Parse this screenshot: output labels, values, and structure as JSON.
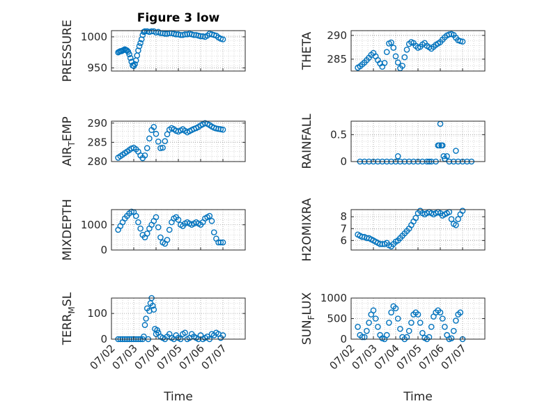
{
  "figure": {
    "title": "Figure 3 low",
    "xlabel": "Time"
  },
  "colors": {
    "marker": "#0072BD",
    "axis": "#262626",
    "grid": "#b8b8b8"
  },
  "chart_data": [
    {
      "id": "pressure",
      "type": "scatter",
      "ylabel": "PRESSURE",
      "ylim": [
        945,
        1010
      ],
      "yticks": [
        950,
        1000
      ],
      "xlim": [
        0,
        6
      ],
      "x_ticks_shown": false,
      "x": [
        0.3,
        0.35,
        0.4,
        0.45,
        0.5,
        0.55,
        0.6,
        0.65,
        0.7,
        0.75,
        0.8,
        0.85,
        0.9,
        0.95,
        1.0,
        1.05,
        1.1,
        1.15,
        1.2,
        1.25,
        1.3,
        1.35,
        1.4,
        1.45,
        1.5,
        1.6,
        1.7,
        1.8,
        1.9,
        2.0,
        2.1,
        2.2,
        2.3,
        2.4,
        2.5,
        2.6,
        2.7,
        2.8,
        2.9,
        3.0,
        3.1,
        3.2,
        3.3,
        3.4,
        3.5,
        3.6,
        3.7,
        3.8,
        3.9,
        4.0,
        4.1,
        4.2,
        4.3,
        4.4,
        4.5,
        4.6,
        4.7,
        4.8,
        4.9,
        5.0
      ],
      "y": [
        975,
        976,
        977,
        977,
        978,
        979,
        980,
        979,
        978,
        976,
        972,
        966,
        960,
        954,
        953,
        956,
        962,
        970,
        978,
        985,
        990,
        996,
        1003,
        1008,
        1009,
        1009,
        1008,
        1009,
        1009,
        1007,
        1008,
        1006,
        1006,
        1005,
        1005,
        1006,
        1006,
        1005,
        1004,
        1004,
        1003,
        1003,
        1004,
        1004,
        1005,
        1004,
        1003,
        1003,
        1002,
        1001,
        1001,
        1000,
        1002,
        1005,
        1004,
        1003,
        1002,
        999,
        997,
        996
      ]
    },
    {
      "id": "theta",
      "type": "scatter",
      "ylabel": "THETA",
      "ylim": [
        282.5,
        291
      ],
      "yticks": [
        285,
        290
      ],
      "xlim": [
        0,
        6
      ],
      "x_ticks_shown": false,
      "x": [
        0.3,
        0.4,
        0.5,
        0.6,
        0.7,
        0.8,
        0.9,
        1.0,
        1.1,
        1.2,
        1.3,
        1.4,
        1.5,
        1.6,
        1.7,
        1.8,
        1.9,
        2.0,
        2.1,
        2.2,
        2.3,
        2.4,
        2.5,
        2.6,
        2.7,
        2.8,
        2.9,
        3.0,
        3.1,
        3.2,
        3.3,
        3.4,
        3.5,
        3.6,
        3.7,
        3.8,
        3.9,
        4.0,
        4.1,
        4.2,
        4.3,
        4.4,
        4.5,
        4.6,
        4.7,
        4.8,
        4.9,
        5.0
      ],
      "y": [
        283.2,
        283.5,
        283.9,
        284.3,
        284.8,
        285.3,
        285.9,
        286.3,
        285.6,
        284.8,
        284.1,
        283.4,
        284.2,
        286.5,
        288.3,
        288.5,
        287.4,
        285.6,
        284.3,
        283.1,
        283.6,
        285.4,
        287.0,
        288.2,
        288.6,
        288.4,
        287.8,
        287.4,
        287.6,
        288.1,
        288.4,
        287.8,
        287.5,
        287.2,
        287.6,
        288.0,
        288.3,
        288.6,
        289.1,
        289.6,
        290.0,
        290.2,
        290.3,
        290.1,
        289.5,
        289.0,
        288.8,
        288.7
      ]
    },
    {
      "id": "airtemp",
      "type": "scatter",
      "ylabel": "AIR_TEMP",
      "ylim": [
        280,
        290.5
      ],
      "yticks": [
        280,
        285,
        290
      ],
      "xlim": [
        0,
        6
      ],
      "x_ticks_shown": false,
      "x": [
        0.3,
        0.4,
        0.5,
        0.6,
        0.7,
        0.8,
        0.9,
        1.0,
        1.1,
        1.2,
        1.3,
        1.4,
        1.5,
        1.6,
        1.7,
        1.8,
        1.9,
        2.0,
        2.1,
        2.2,
        2.3,
        2.4,
        2.5,
        2.6,
        2.7,
        2.8,
        2.9,
        3.0,
        3.1,
        3.2,
        3.3,
        3.4,
        3.5,
        3.6,
        3.7,
        3.8,
        3.9,
        4.0,
        4.1,
        4.2,
        4.3,
        4.4,
        4.5,
        4.6,
        4.7,
        4.8,
        4.9,
        5.0
      ],
      "y": [
        281.0,
        281.4,
        281.8,
        282.2,
        282.6,
        283.0,
        283.4,
        283.6,
        283.2,
        282.6,
        281.6,
        280.9,
        281.6,
        283.5,
        286.0,
        288.2,
        289.0,
        287.2,
        285.2,
        283.5,
        283.6,
        285.3,
        287.1,
        288.3,
        288.7,
        288.4,
        288.0,
        287.8,
        288.1,
        288.4,
        288.0,
        287.6,
        287.9,
        288.2,
        288.5,
        288.7,
        289.0,
        289.4,
        289.7,
        290.0,
        289.8,
        289.5,
        289.1,
        288.8,
        288.6,
        288.5,
        288.4,
        288.3
      ]
    },
    {
      "id": "rainfall",
      "type": "scatter",
      "ylabel": "RAINFALL",
      "ylim": [
        0,
        0.75
      ],
      "yticks": [
        0,
        0.5
      ],
      "xlim": [
        0,
        6
      ],
      "x_ticks_shown": false,
      "x": [
        0.4,
        0.6,
        0.8,
        1.0,
        1.2,
        1.4,
        1.6,
        1.8,
        2.0,
        2.1,
        2.2,
        2.4,
        2.6,
        2.8,
        3.0,
        3.2,
        3.4,
        3.5,
        3.6,
        3.8,
        3.9,
        3.95,
        4.0,
        4.05,
        4.1,
        4.15,
        4.2,
        4.3,
        4.4,
        4.6,
        4.7,
        4.8,
        5.0,
        5.2,
        5.4
      ],
      "y": [
        0,
        0,
        0,
        0,
        0,
        0,
        0,
        0,
        0,
        0.1,
        0,
        0,
        0,
        0,
        0,
        0,
        0,
        0,
        0,
        0,
        0.3,
        0.3,
        0.7,
        0.3,
        0.3,
        0.1,
        0.05,
        0.1,
        0,
        0,
        0.2,
        0,
        0,
        0,
        0
      ]
    },
    {
      "id": "mixdepth",
      "type": "scatter",
      "ylabel": "MIXDEPTH",
      "ylim": [
        0,
        1600
      ],
      "yticks": [
        0,
        1000
      ],
      "xlim": [
        0,
        6
      ],
      "x_ticks_shown": false,
      "x": [
        0.3,
        0.4,
        0.5,
        0.6,
        0.7,
        0.8,
        0.9,
        1.0,
        1.1,
        1.2,
        1.3,
        1.4,
        1.5,
        1.6,
        1.7,
        1.8,
        1.9,
        2.0,
        2.1,
        2.2,
        2.3,
        2.4,
        2.5,
        2.6,
        2.7,
        2.8,
        2.9,
        3.0,
        3.1,
        3.2,
        3.3,
        3.4,
        3.5,
        3.6,
        3.7,
        3.8,
        3.9,
        4.0,
        4.1,
        4.2,
        4.3,
        4.4,
        4.5,
        4.6,
        4.7,
        4.8,
        4.9,
        5.0
      ],
      "y": [
        800,
        950,
        1100,
        1250,
        1350,
        1450,
        1520,
        1500,
        1350,
        1100,
        850,
        600,
        500,
        650,
        850,
        1000,
        1150,
        1300,
        900,
        500,
        300,
        250,
        400,
        800,
        1100,
        1250,
        1300,
        1200,
        1000,
        950,
        1050,
        1100,
        1050,
        1000,
        1050,
        1100,
        1050,
        1000,
        1100,
        1250,
        1300,
        1350,
        1150,
        700,
        450,
        300,
        300,
        300
      ]
    },
    {
      "id": "h2omixra",
      "type": "scatter",
      "ylabel": "H2OMIXRA",
      "ylim": [
        5.2,
        8.6
      ],
      "yticks": [
        6,
        7,
        8
      ],
      "xlim": [
        0,
        6
      ],
      "x_ticks_shown": false,
      "x": [
        0.3,
        0.4,
        0.5,
        0.6,
        0.7,
        0.8,
        0.9,
        1.0,
        1.1,
        1.2,
        1.3,
        1.4,
        1.5,
        1.6,
        1.7,
        1.8,
        1.9,
        2.0,
        2.1,
        2.2,
        2.3,
        2.4,
        2.5,
        2.6,
        2.7,
        2.8,
        2.9,
        3.0,
        3.1,
        3.2,
        3.3,
        3.4,
        3.5,
        3.6,
        3.7,
        3.8,
        3.9,
        4.0,
        4.1,
        4.2,
        4.3,
        4.4,
        4.5,
        4.6,
        4.7,
        4.8,
        4.9,
        5.0
      ],
      "y": [
        6.5,
        6.4,
        6.3,
        6.3,
        6.2,
        6.2,
        6.1,
        6.0,
        5.9,
        5.8,
        5.7,
        5.7,
        5.7,
        5.8,
        5.6,
        5.5,
        5.7,
        5.9,
        6.0,
        6.2,
        6.4,
        6.6,
        6.8,
        7.0,
        7.3,
        7.6,
        7.9,
        8.3,
        8.5,
        8.3,
        8.2,
        8.3,
        8.4,
        8.3,
        8.2,
        8.3,
        8.4,
        8.3,
        8.1,
        8.2,
        8.3,
        8.4,
        7.8,
        7.4,
        7.3,
        7.8,
        8.2,
        8.5
      ]
    },
    {
      "id": "terrmsl",
      "type": "scatter",
      "ylabel": "TERR_MSL",
      "ylim": [
        0,
        160
      ],
      "yticks": [
        0,
        100
      ],
      "xlim": [
        0,
        6
      ],
      "x_ticks_shown": false,
      "x": [
        0.3,
        0.4,
        0.5,
        0.6,
        0.7,
        0.8,
        0.9,
        1.0,
        1.1,
        1.2,
        1.3,
        1.4,
        1.45,
        1.5,
        1.55,
        1.6,
        1.65,
        1.7,
        1.75,
        1.8,
        1.85,
        1.9,
        1.95,
        2.0,
        2.05,
        2.1,
        2.2,
        2.3,
        2.4,
        2.5,
        2.6,
        2.7,
        2.8,
        2.9,
        3.0,
        3.1,
        3.2,
        3.3,
        3.4,
        3.5,
        3.6,
        3.7,
        3.8,
        3.9,
        4.0,
        4.1,
        4.2,
        4.3,
        4.4,
        4.5,
        4.6,
        4.7,
        4.8,
        4.9,
        5.0
      ],
      "y": [
        0,
        0,
        0,
        0,
        0,
        0,
        0,
        0,
        0,
        0,
        0,
        0,
        10,
        55,
        80,
        120,
        0,
        110,
        140,
        160,
        130,
        115,
        40,
        20,
        35,
        25,
        10,
        5,
        0,
        10,
        20,
        5,
        0,
        15,
        5,
        0,
        20,
        25,
        0,
        5,
        20,
        10,
        5,
        0,
        15,
        0,
        5,
        10,
        0,
        20,
        15,
        25,
        20,
        5,
        15
      ]
    },
    {
      "id": "sunflux",
      "type": "scatter",
      "ylabel": "SUN_FLUX",
      "ylim": [
        0,
        1000
      ],
      "yticks": [
        0,
        500,
        1000
      ],
      "xlim": [
        0,
        6
      ],
      "xticklabels": [
        "07/02",
        "07/03",
        "07/04",
        "07/05",
        "07/06",
        "07/07"
      ],
      "x": [
        0.3,
        0.4,
        0.5,
        0.6,
        0.7,
        0.8,
        0.9,
        1.0,
        1.1,
        1.2,
        1.3,
        1.4,
        1.5,
        1.6,
        1.7,
        1.8,
        1.9,
        2.0,
        2.1,
        2.2,
        2.3,
        2.4,
        2.5,
        2.6,
        2.7,
        2.8,
        2.9,
        3.0,
        3.1,
        3.2,
        3.3,
        3.4,
        3.5,
        3.6,
        3.7,
        3.8,
        3.9,
        4.0,
        4.1,
        4.2,
        4.3,
        4.4,
        4.5,
        4.6,
        4.7,
        4.8,
        4.9,
        5.0
      ],
      "y": [
        300,
        100,
        50,
        50,
        200,
        400,
        600,
        700,
        500,
        300,
        100,
        20,
        0,
        100,
        400,
        650,
        800,
        750,
        500,
        250,
        50,
        0,
        50,
        200,
        400,
        600,
        650,
        600,
        400,
        150,
        30,
        0,
        50,
        300,
        550,
        650,
        700,
        650,
        500,
        300,
        100,
        0,
        20,
        200,
        450,
        600,
        650,
        0
      ]
    }
  ]
}
